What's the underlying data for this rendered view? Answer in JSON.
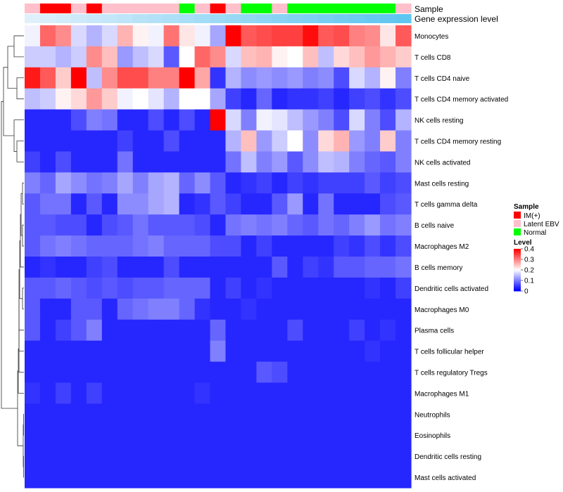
{
  "chart_data": {
    "type": "heatmap",
    "title": "",
    "annotation_labels": [
      "Sample",
      "Gene expression level"
    ],
    "rows": [
      "Monocytes",
      "T cells CD8",
      "T cells CD4 naive",
      "T cells CD4 memory activated",
      "NK cells resting",
      "T cells CD4 memory resting",
      "NK cells activated",
      "Mast cells resting",
      "T cells gamma delta",
      "B cells naive",
      "Macrophages M2",
      "B cells memory",
      "Dendritic cells activated",
      "Macrophages M0",
      "Plasma cells",
      "T cells follicular helper",
      "T cells regulatory  Tregs",
      "Macrophages M1",
      "Neutrophils",
      "Eosinophils",
      "Dendritic cells resting",
      "Mast cells activated"
    ],
    "sample_groups": [
      "Latent EBV",
      "IM(+)",
      "IM(+)",
      "Latent EBV",
      "IM(+)",
      "Latent EBV",
      "Latent EBV",
      "Latent EBV",
      "Latent EBV",
      "Latent EBV",
      "Normal",
      "Latent EBV",
      "IM(+)",
      "Latent EBV",
      "Normal",
      "Normal",
      "Latent EBV",
      "Normal",
      "Normal",
      "Normal",
      "Normal",
      "Normal",
      "Normal",
      "Normal",
      "Latent EBV"
    ],
    "expression_level": [
      0.05,
      0.1,
      0.14,
      0.18,
      0.22,
      0.26,
      0.3,
      0.34,
      0.38,
      0.42,
      0.46,
      0.5,
      0.54,
      0.58,
      0.62,
      0.66,
      0.7,
      0.74,
      0.78,
      0.82,
      0.86,
      0.9,
      0.94,
      0.97,
      1.0
    ],
    "values": [
      [
        0.19,
        0.32,
        0.29,
        0.17,
        0.14,
        0.17,
        0.26,
        0.21,
        0.19,
        0.31,
        0.22,
        0.19,
        0.13,
        0.4,
        0.33,
        0.34,
        0.35,
        0.35,
        0.39,
        0.33,
        0.34,
        0.3,
        0.29,
        0.22,
        0.33
      ],
      [
        0.16,
        0.16,
        0.14,
        0.16,
        0.29,
        0.25,
        0.12,
        0.15,
        0.17,
        0.07,
        0.2,
        0.32,
        0.29,
        0.17,
        0.25,
        0.26,
        0.21,
        0.2,
        0.25,
        0.15,
        0.23,
        0.25,
        0.28,
        0.26,
        0.24
      ],
      [
        0.38,
        0.33,
        0.24,
        0.4,
        0.15,
        0.29,
        0.34,
        0.34,
        0.3,
        0.3,
        0.4,
        0.27,
        0.04,
        0.14,
        0.11,
        0.12,
        0.11,
        0.12,
        0.1,
        0.11,
        0.06,
        0.17,
        0.14,
        0.21,
        0.1
      ],
      [
        0.15,
        0.16,
        0.21,
        0.23,
        0.28,
        0.24,
        0.19,
        0.2,
        0.18,
        0.14,
        0.2,
        0.2,
        0.13,
        0.05,
        0.03,
        0.08,
        0.03,
        0.04,
        0.04,
        0.05,
        0.03,
        0.05,
        0.06,
        0.04,
        0.06
      ],
      [
        0.03,
        0.03,
        0.03,
        0.06,
        0.1,
        0.09,
        0.03,
        0.03,
        0.06,
        0.03,
        0.06,
        0.03,
        0.4,
        0.17,
        0.1,
        0.19,
        0.18,
        0.15,
        0.12,
        0.1,
        0.06,
        0.17,
        0.1,
        0.06,
        0.14
      ],
      [
        0.03,
        0.03,
        0.03,
        0.03,
        0.03,
        0.03,
        0.05,
        0.03,
        0.03,
        0.06,
        0.03,
        0.03,
        0.03,
        0.14,
        0.25,
        0.12,
        0.16,
        0.2,
        0.11,
        0.23,
        0.26,
        0.12,
        0.1,
        0.24,
        0.1
      ],
      [
        0.05,
        0.03,
        0.06,
        0.03,
        0.03,
        0.03,
        0.09,
        0.03,
        0.03,
        0.03,
        0.03,
        0.03,
        0.03,
        0.09,
        0.15,
        0.1,
        0.12,
        0.07,
        0.11,
        0.15,
        0.14,
        0.1,
        0.08,
        0.07,
        0.1
      ],
      [
        0.1,
        0.08,
        0.13,
        0.11,
        0.09,
        0.1,
        0.13,
        0.1,
        0.13,
        0.14,
        0.08,
        0.11,
        0.07,
        0.03,
        0.04,
        0.05,
        0.03,
        0.05,
        0.04,
        0.05,
        0.05,
        0.05,
        0.07,
        0.05,
        0.06
      ],
      [
        0.07,
        0.09,
        0.09,
        0.03,
        0.07,
        0.03,
        0.11,
        0.11,
        0.13,
        0.14,
        0.03,
        0.04,
        0.07,
        0.05,
        0.03,
        0.03,
        0.07,
        0.12,
        0.03,
        0.09,
        0.03,
        0.03,
        0.03,
        0.06,
        0.07
      ],
      [
        0.07,
        0.07,
        0.06,
        0.06,
        0.03,
        0.06,
        0.07,
        0.09,
        0.07,
        0.07,
        0.07,
        0.06,
        0.03,
        0.09,
        0.1,
        0.09,
        0.1,
        0.08,
        0.07,
        0.09,
        0.08,
        0.1,
        0.12,
        0.09,
        0.1
      ],
      [
        0.07,
        0.09,
        0.1,
        0.09,
        0.08,
        0.08,
        0.08,
        0.09,
        0.1,
        0.08,
        0.08,
        0.08,
        0.06,
        0.06,
        0.03,
        0.05,
        0.03,
        0.03,
        0.03,
        0.03,
        0.05,
        0.04,
        0.06,
        0.04,
        0.06
      ],
      [
        0.03,
        0.04,
        0.03,
        0.03,
        0.05,
        0.06,
        0.03,
        0.03,
        0.03,
        0.06,
        0.03,
        0.03,
        0.03,
        0.03,
        0.03,
        0.03,
        0.07,
        0.03,
        0.05,
        0.04,
        0.07,
        0.07,
        0.08,
        0.08,
        0.09
      ],
      [
        0.07,
        0.07,
        0.08,
        0.07,
        0.06,
        0.07,
        0.06,
        0.07,
        0.07,
        0.08,
        0.08,
        0.08,
        0.03,
        0.05,
        0.03,
        0.04,
        0.03,
        0.03,
        0.03,
        0.03,
        0.03,
        0.03,
        0.04,
        0.03,
        0.05
      ],
      [
        0.07,
        0.03,
        0.03,
        0.07,
        0.07,
        0.03,
        0.08,
        0.09,
        0.1,
        0.1,
        0.08,
        0.04,
        0.03,
        0.03,
        0.04,
        0.03,
        0.03,
        0.03,
        0.03,
        0.03,
        0.03,
        0.03,
        0.03,
        0.03,
        0.03
      ],
      [
        0.07,
        0.03,
        0.05,
        0.07,
        0.1,
        0.03,
        0.03,
        0.03,
        0.03,
        0.03,
        0.03,
        0.03,
        0.08,
        0.03,
        0.03,
        0.03,
        0.03,
        0.06,
        0.03,
        0.03,
        0.03,
        0.05,
        0.03,
        0.04,
        0.03
      ],
      [
        0.03,
        0.03,
        0.03,
        0.03,
        0.03,
        0.03,
        0.03,
        0.03,
        0.03,
        0.03,
        0.03,
        0.03,
        0.1,
        0.03,
        0.03,
        0.03,
        0.03,
        0.03,
        0.03,
        0.03,
        0.03,
        0.03,
        0.04,
        0.03,
        0.03
      ],
      [
        0.03,
        0.03,
        0.03,
        0.03,
        0.03,
        0.03,
        0.03,
        0.03,
        0.03,
        0.03,
        0.03,
        0.03,
        0.03,
        0.03,
        0.03,
        0.07,
        0.06,
        0.03,
        0.03,
        0.03,
        0.03,
        0.03,
        0.03,
        0.03,
        0.03
      ],
      [
        0.04,
        0.03,
        0.05,
        0.03,
        0.05,
        0.03,
        0.03,
        0.03,
        0.03,
        0.03,
        0.03,
        0.04,
        0.03,
        0.03,
        0.03,
        0.03,
        0.03,
        0.03,
        0.03,
        0.03,
        0.03,
        0.03,
        0.03,
        0.03,
        0.03
      ],
      [
        0.03,
        0.03,
        0.03,
        0.03,
        0.03,
        0.03,
        0.03,
        0.03,
        0.03,
        0.03,
        0.03,
        0.03,
        0.03,
        0.03,
        0.03,
        0.03,
        0.03,
        0.03,
        0.03,
        0.03,
        0.03,
        0.03,
        0.03,
        0.03,
        0.03
      ],
      [
        0.03,
        0.03,
        0.03,
        0.03,
        0.03,
        0.03,
        0.03,
        0.03,
        0.03,
        0.03,
        0.03,
        0.03,
        0.03,
        0.03,
        0.03,
        0.03,
        0.03,
        0.03,
        0.03,
        0.03,
        0.03,
        0.03,
        0.03,
        0.03,
        0.03
      ],
      [
        0.03,
        0.03,
        0.03,
        0.03,
        0.03,
        0.03,
        0.03,
        0.03,
        0.03,
        0.03,
        0.03,
        0.03,
        0.03,
        0.03,
        0.03,
        0.03,
        0.03,
        0.03,
        0.03,
        0.03,
        0.03,
        0.03,
        0.03,
        0.03,
        0.03
      ],
      [
        0.03,
        0.03,
        0.03,
        0.03,
        0.03,
        0.03,
        0.03,
        0.03,
        0.03,
        0.03,
        0.03,
        0.03,
        0.03,
        0.03,
        0.03,
        0.03,
        0.03,
        0.03,
        0.03,
        0.03,
        0.03,
        0.03,
        0.03,
        0.03,
        0.03
      ]
    ],
    "legend": {
      "sample_title": "Sample",
      "sample_entries": [
        {
          "label": "IM(+)",
          "color": "#ff0000"
        },
        {
          "label": "Latent EBV",
          "color": "#ffc0cb"
        },
        {
          "label": "Normal",
          "color": "#00ff00"
        }
      ],
      "level_title": "Level",
      "level_ticks": [
        0.4,
        0.3,
        0.2,
        0.1,
        0
      ],
      "level_range": [
        0,
        0.4
      ],
      "placement": "right"
    },
    "colors": {
      "low": "#0000ff",
      "mid": "#ffffff",
      "high": "#ff0000",
      "expr_low": "#e6f2fb",
      "expr_high": "#5fc6f0"
    },
    "row_dendrogram": true,
    "grid": false
  }
}
